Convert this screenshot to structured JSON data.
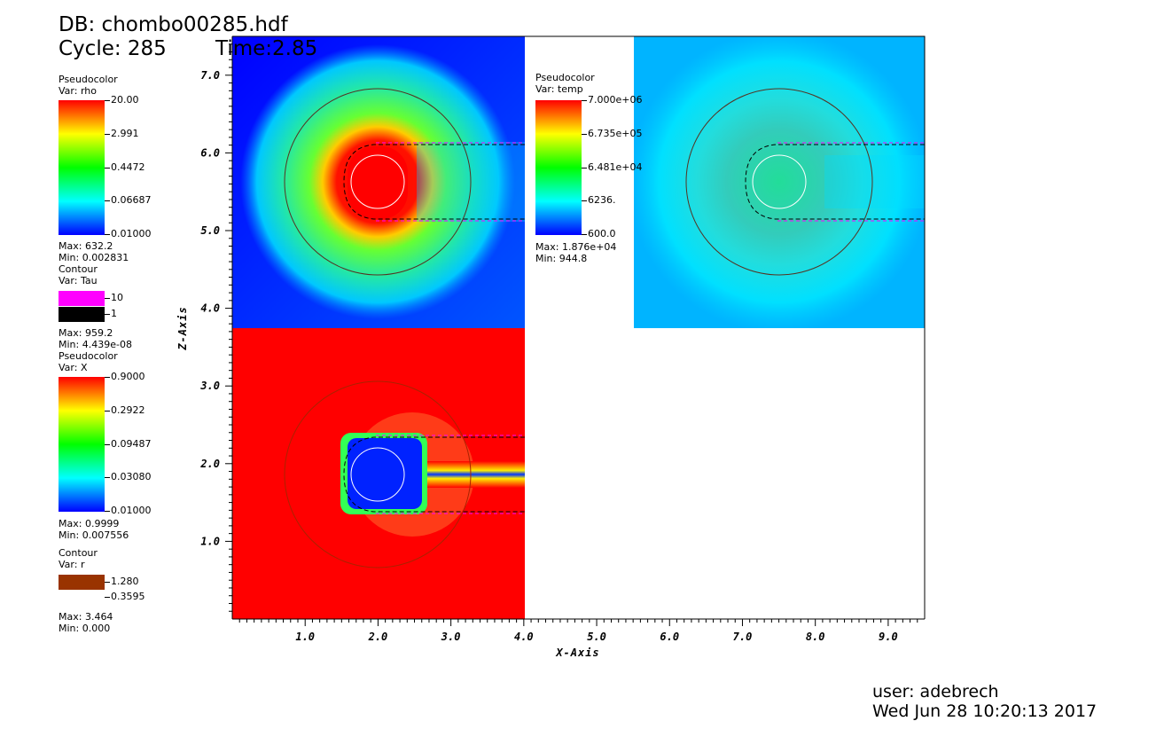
{
  "header": {
    "db": "DB: chombo00285.hdf",
    "cycle": "Cycle: 285",
    "time": "Time:2.85"
  },
  "legends": {
    "rho": {
      "kind": "Pseudocolor",
      "var": "Var: rho",
      "ticks": [
        "20.00",
        "2.991",
        "0.4472",
        "0.06687",
        "0.01000"
      ],
      "max": "Max: 632.2",
      "min": "Min: 0.002831"
    },
    "tau": {
      "kind": "Contour",
      "var": "Var: Tau",
      "levels": [
        "10",
        "1"
      ],
      "colors": [
        "#ff00ff",
        "#000000"
      ],
      "max": "Max: 959.2",
      "min": "Min: 4.439e-08"
    },
    "x": {
      "kind": "Pseudocolor",
      "var": "Var: X",
      "ticks": [
        "0.9000",
        "0.2922",
        "0.09487",
        "0.03080",
        "0.01000"
      ],
      "max": "Max: 0.9999",
      "min": "Min: 0.007556"
    },
    "r": {
      "kind": "Contour",
      "var": "Var: r",
      "levels": [
        "1.280",
        "0.3595"
      ],
      "colors": [
        "#993300"
      ],
      "max": "Max: 3.464",
      "min": "Min: 0.000"
    },
    "temp": {
      "kind": "Pseudocolor",
      "var": "Var: temp",
      "ticks": [
        "7.000e+06",
        "6.735e+05",
        "6.481e+04",
        "6236.",
        "600.0"
      ],
      "max": "Max: 1.876e+04",
      "min": "Min: 944.8"
    }
  },
  "colormap": [
    "#ff0000",
    "#ffff00",
    "#00ff00",
    "#00ffff",
    "#0000ff"
  ],
  "chart_data": {
    "type": "heatmap",
    "xlabel": "X-Axis",
    "ylabel": "Z-Axis",
    "xlim": [
      0,
      9.5
    ],
    "ylim": [
      0,
      7.5
    ],
    "xticks": [
      "1.0",
      "2.0",
      "3.0",
      "4.0",
      "5.0",
      "6.0",
      "7.0",
      "8.0",
      "9.0"
    ],
    "yticks": [
      "1.0",
      "2.0",
      "3.0",
      "4.0",
      "5.0",
      "6.0",
      "7.0"
    ],
    "panels": [
      {
        "var": "rho",
        "x_range": [
          0,
          4
        ],
        "z_range": [
          4,
          7.5
        ],
        "center": [
          2,
          6
        ],
        "ring_radius": 1.28,
        "core_radius": 0.36,
        "background": "#0033ff"
      },
      {
        "var": "temp",
        "x_range": [
          5.5,
          9.5
        ],
        "z_range": [
          4,
          7.5
        ],
        "center": [
          7.5,
          6
        ],
        "ring_radius": 1.28,
        "core_radius": 0.36,
        "background": "#00ccff"
      },
      {
        "var": "X",
        "x_range": [
          0,
          4
        ],
        "z_range": [
          0,
          4
        ],
        "center": [
          2,
          2
        ],
        "ring_radius": 1.28,
        "core_radius": 0.36,
        "background": "#ff0000"
      }
    ]
  },
  "footer": {
    "user": "user: adebrech",
    "date": "Wed Jun 28 10:20:13 2017"
  }
}
